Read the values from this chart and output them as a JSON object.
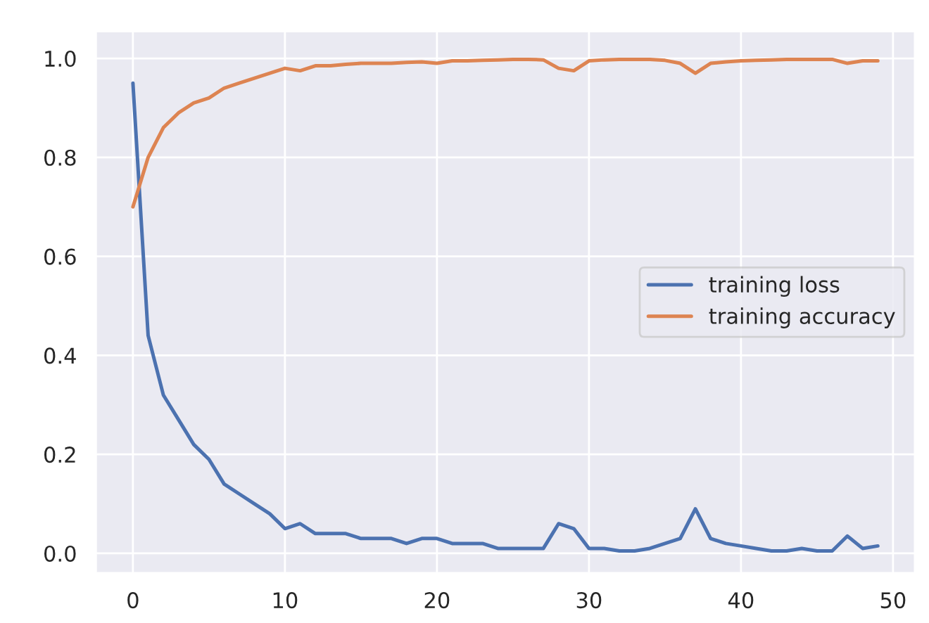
{
  "chart_data": {
    "type": "line",
    "x": [
      0,
      1,
      2,
      3,
      4,
      5,
      6,
      7,
      8,
      9,
      10,
      11,
      12,
      13,
      14,
      15,
      16,
      17,
      18,
      19,
      20,
      21,
      22,
      23,
      24,
      25,
      26,
      27,
      28,
      29,
      30,
      31,
      32,
      33,
      34,
      35,
      36,
      37,
      38,
      39,
      40,
      41,
      42,
      43,
      44,
      45,
      46,
      47,
      48,
      49
    ],
    "series": [
      {
        "name": "training loss",
        "color": "#4c72b0",
        "values": [
          0.95,
          0.44,
          0.32,
          0.27,
          0.22,
          0.19,
          0.14,
          0.12,
          0.1,
          0.08,
          0.05,
          0.06,
          0.04,
          0.04,
          0.04,
          0.03,
          0.03,
          0.03,
          0.02,
          0.03,
          0.03,
          0.02,
          0.02,
          0.02,
          0.01,
          0.01,
          0.01,
          0.01,
          0.06,
          0.05,
          0.01,
          0.01,
          0.005,
          0.005,
          0.01,
          0.02,
          0.03,
          0.09,
          0.03,
          0.02,
          0.015,
          0.01,
          0.005,
          0.005,
          0.01,
          0.005,
          0.005,
          0.035,
          0.01,
          0.015
        ]
      },
      {
        "name": "training accuracy",
        "color": "#dd8452",
        "values": [
          0.7,
          0.8,
          0.86,
          0.89,
          0.91,
          0.92,
          0.94,
          0.95,
          0.96,
          0.97,
          0.98,
          0.975,
          0.985,
          0.985,
          0.988,
          0.99,
          0.99,
          0.99,
          0.992,
          0.993,
          0.99,
          0.995,
          0.995,
          0.996,
          0.997,
          0.998,
          0.998,
          0.997,
          0.98,
          0.975,
          0.995,
          0.997,
          0.998,
          0.998,
          0.998,
          0.996,
          0.99,
          0.97,
          0.99,
          0.993,
          0.995,
          0.996,
          0.997,
          0.998,
          0.998,
          0.998,
          0.998,
          0.99,
          0.995,
          0.995
        ]
      }
    ],
    "xlim": [
      -2.45,
      51.45
    ],
    "ylim": [
      -0.04,
      1.055
    ],
    "xticks": [
      0,
      10,
      20,
      30,
      40,
      50
    ],
    "yticks": [
      {
        "value": 0,
        "label": "0.0"
      },
      {
        "value": 0.2,
        "label": "0.2"
      },
      {
        "value": 0.4,
        "label": "0.4"
      },
      {
        "value": 0.6,
        "label": "0.6"
      },
      {
        "value": 0.8,
        "label": "0.8"
      },
      {
        "value": 1.0,
        "label": "1.0"
      }
    ],
    "grid": true,
    "legend": "center right",
    "marker": "none",
    "line_style": "solid"
  }
}
